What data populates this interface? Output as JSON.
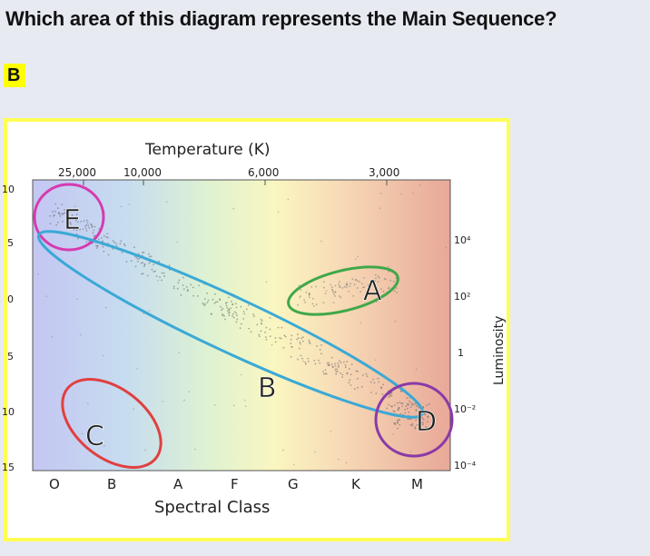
{
  "question": {
    "text": "Which area of this diagram represents the Main Sequence?"
  },
  "answer": {
    "text": "B"
  },
  "diagram": {
    "temperature_title": "Temperature (K)",
    "temperature_ticks": [
      "25,000",
      "10,000",
      "6,000",
      "3,000"
    ],
    "spectral_title": "Spectral Class",
    "spectral_classes": [
      "O",
      "B",
      "A",
      "F",
      "G",
      "K",
      "M"
    ],
    "magnitude_ticks": [
      "10",
      "5",
      "0",
      "5",
      "10",
      "15"
    ],
    "luminosity_ticks": [
      "10⁴",
      "10²",
      "1",
      "10⁻²",
      "10⁻⁴"
    ],
    "luminosity_title": "Luminosity",
    "regions": [
      {
        "label": "E",
        "color": "#d63ab0"
      },
      {
        "label": "A",
        "color": "#3fa84a"
      },
      {
        "label": "B",
        "color": "#3aa9d6"
      },
      {
        "label": "C",
        "color": "#e04040"
      },
      {
        "label": "D",
        "color": "#8a3aa8"
      }
    ]
  }
}
